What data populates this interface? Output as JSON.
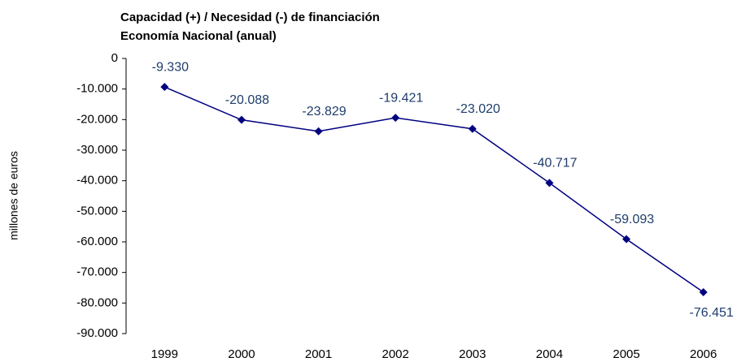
{
  "chart_data": {
    "type": "line",
    "title": "Capacidad (+) / Necesidad (-) de financiación",
    "subtitle": "Economía Nacional (anual)",
    "y_label": "millones de euros",
    "categories": [
      "1999",
      "2000",
      "2001",
      "2002",
      "2003",
      "2004",
      "2005",
      "2006"
    ],
    "series": [
      {
        "name": "Capacidad (+) / Necesidad (-) de financiación",
        "color": "#000080",
        "values": [
          -9330,
          -20088,
          -23829,
          -19421,
          -23020,
          -40717,
          -59093,
          -76451
        ],
        "value_labels": [
          "-9.330",
          "-20.088",
          "-23.829",
          "-19.421",
          "-23.020",
          "-40.717",
          "-59.093",
          "-76.451"
        ]
      }
    ],
    "ylim": [
      -90000,
      0
    ],
    "yticks": [
      0,
      {
        "value": -10000,
        "label": "-10.000"
      },
      {
        "value": -20000,
        "label": "-20.000"
      },
      {
        "value": -30000,
        "label": "-30.000"
      },
      {
        "value": -40000,
        "label": "-40.000"
      },
      {
        "value": -50000,
        "label": "-50.000"
      },
      {
        "value": -60000,
        "label": "-60.000"
      },
      {
        "value": -70000,
        "label": "-70.000"
      },
      {
        "value": -80000,
        "label": "-80.000"
      },
      {
        "value": -90000,
        "label": "-90.000"
      }
    ],
    "grid": false
  }
}
